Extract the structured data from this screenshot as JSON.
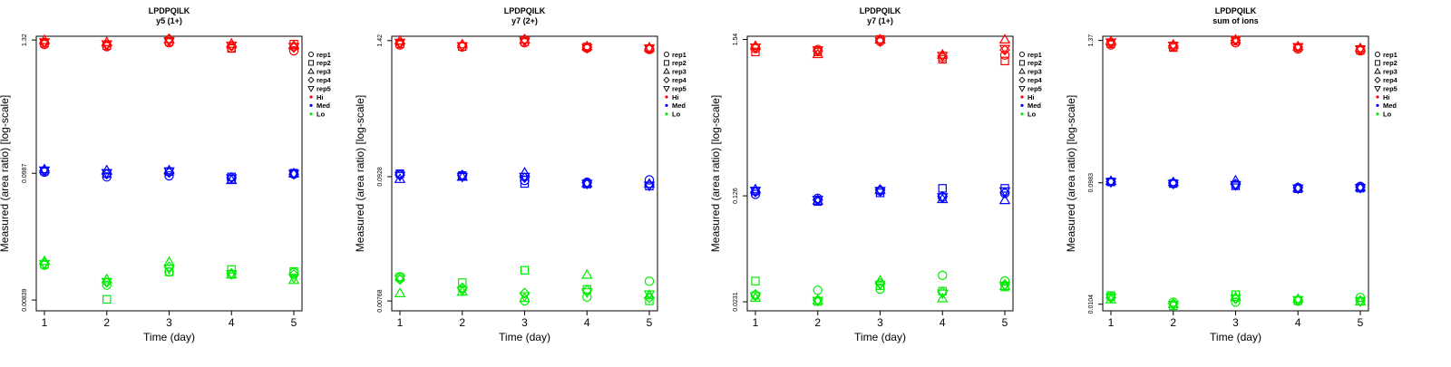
{
  "colors": {
    "Hi": "#ff0000",
    "Med": "#0000ff",
    "Lo": "#00ee00",
    "axis": "#000000"
  },
  "legend": {
    "shapes": [
      {
        "label": "rep1",
        "shape": "circle"
      },
      {
        "label": "rep2",
        "shape": "square"
      },
      {
        "label": "rep3",
        "shape": "triangle-up"
      },
      {
        "label": "rep4",
        "shape": "diamond"
      },
      {
        "label": "rep5",
        "shape": "triangle-down"
      }
    ],
    "groups": [
      {
        "label": "Hi",
        "color": "#ff0000"
      },
      {
        "label": "Med",
        "color": "#0000ff"
      },
      {
        "label": "Lo",
        "color": "#00ee00"
      }
    ]
  },
  "chart_data": [
    {
      "type": "scatter",
      "title": "LPDPQILK",
      "subtitle": "y5 (1+)",
      "xlabel": "Time (day)",
      "ylabel": "Measured (area ratio) [log-scale]",
      "yscale": "log",
      "x_ticks": [
        "1",
        "2",
        "3",
        "4",
        "5"
      ],
      "y_ticks": [
        {
          "label": "1.32",
          "value": 1.32
        },
        {
          "label": "0.0987",
          "value": 0.0987
        },
        {
          "label": "0.00839",
          "value": 0.00839
        }
      ],
      "ylim": [
        0.0068,
        1.42
      ],
      "series": [
        {
          "group": "Hi",
          "rep": "rep1",
          "values": [
            1.21,
            1.16,
            1.25,
            1.13,
            1.07
          ]
        },
        {
          "group": "Hi",
          "rep": "rep2",
          "values": [
            1.24,
            1.18,
            1.28,
            1.12,
            1.22
          ]
        },
        {
          "group": "Hi",
          "rep": "rep3",
          "values": [
            1.31,
            1.26,
            1.33,
            1.22,
            1.18
          ]
        },
        {
          "group": "Hi",
          "rep": "rep4",
          "values": [
            1.25,
            1.2,
            1.35,
            1.17,
            1.14
          ]
        },
        {
          "group": "Hi",
          "rep": "rep5",
          "values": [
            1.27,
            1.22,
            1.3,
            1.19,
            1.16
          ]
        },
        {
          "group": "Med",
          "rep": "rep1",
          "values": [
            0.101,
            0.092,
            0.094,
            0.088,
            0.097
          ]
        },
        {
          "group": "Med",
          "rep": "rep2",
          "values": [
            0.103,
            0.098,
            0.102,
            0.092,
            0.099
          ]
        },
        {
          "group": "Med",
          "rep": "rep3",
          "values": [
            0.106,
            0.104,
            0.104,
            0.086,
            0.098
          ]
        },
        {
          "group": "Med",
          "rep": "rep4",
          "values": [
            0.104,
            0.097,
            0.1,
            0.091,
            0.097
          ]
        },
        {
          "group": "Med",
          "rep": "rep5",
          "values": [
            0.105,
            0.1,
            0.103,
            0.09,
            0.098
          ]
        },
        {
          "group": "Lo",
          "rep": "rep1",
          "values": [
            0.0165,
            0.0112,
            0.0145,
            0.0138,
            0.0143
          ]
        },
        {
          "group": "Lo",
          "rep": "rep2",
          "values": [
            0.0168,
            0.0085,
            0.0145,
            0.0152,
            0.0146
          ]
        },
        {
          "group": "Lo",
          "rep": "rep3",
          "values": [
            0.0178,
            0.0125,
            0.0175,
            0.0137,
            0.0123
          ]
        },
        {
          "group": "Lo",
          "rep": "rep4",
          "values": [
            0.0172,
            0.0118,
            0.016,
            0.0141,
            0.0138
          ]
        },
        {
          "group": "Lo",
          "rep": "rep5",
          "values": [
            0.017,
            0.012,
            0.0155,
            0.014,
            0.013
          ]
        }
      ]
    },
    {
      "type": "scatter",
      "title": "LPDPQILK",
      "subtitle": "y7 (2+)",
      "xlabel": "Time (day)",
      "ylabel": "Measured (area ratio) [log-scale]",
      "yscale": "log",
      "x_ticks": [
        "1",
        "2",
        "3",
        "4",
        "5"
      ],
      "y_ticks": [
        {
          "label": "1.42",
          "value": 1.42
        },
        {
          "label": "0.0928",
          "value": 0.0928
        },
        {
          "label": "0.00768",
          "value": 0.00768
        }
      ],
      "ylim": [
        0.0063,
        1.55
      ],
      "series": [
        {
          "group": "Hi",
          "rep": "rep1",
          "values": [
            1.3,
            1.25,
            1.36,
            1.22,
            1.19
          ]
        },
        {
          "group": "Hi",
          "rep": "rep2",
          "values": [
            1.33,
            1.26,
            1.39,
            1.25,
            1.21
          ]
        },
        {
          "group": "Hi",
          "rep": "rep3",
          "values": [
            1.41,
            1.31,
            1.44,
            1.26,
            1.23
          ]
        },
        {
          "group": "Hi",
          "rep": "rep4",
          "values": [
            1.35,
            1.29,
            1.46,
            1.24,
            1.2
          ]
        },
        {
          "group": "Hi",
          "rep": "rep5",
          "values": [
            1.37,
            1.28,
            1.42,
            1.23,
            1.22
          ]
        },
        {
          "group": "Med",
          "rep": "rep1",
          "values": [
            0.0975,
            0.094,
            0.086,
            0.083,
            0.087
          ]
        },
        {
          "group": "Med",
          "rep": "rep2",
          "values": [
            0.0985,
            0.095,
            0.081,
            0.08,
            0.077
          ]
        },
        {
          "group": "Med",
          "rep": "rep3",
          "values": [
            0.088,
            0.092,
            0.1,
            0.081,
            0.08
          ]
        },
        {
          "group": "Med",
          "rep": "rep4",
          "values": [
            0.096,
            0.096,
            0.091,
            0.082,
            0.079
          ]
        },
        {
          "group": "Med",
          "rep": "rep5",
          "values": [
            0.095,
            0.093,
            0.093,
            0.081,
            0.078
          ]
        },
        {
          "group": "Lo",
          "rep": "rep1",
          "values": [
            0.0125,
            0.0098,
            0.0077,
            0.0083,
            0.0114
          ]
        },
        {
          "group": "Lo",
          "rep": "rep2",
          "values": [
            0.0123,
            0.0111,
            0.0142,
            0.0097,
            0.0077
          ]
        },
        {
          "group": "Lo",
          "rep": "rep3",
          "values": [
            0.0089,
            0.0092,
            0.0081,
            0.0129,
            0.0086
          ]
        },
        {
          "group": "Lo",
          "rep": "rep4",
          "values": [
            0.0118,
            0.01,
            0.009,
            0.0095,
            0.0082
          ]
        },
        {
          "group": "Lo",
          "rep": "rep5",
          "values": [
            0.012,
            0.0095,
            0.0085,
            0.0092,
            0.0088
          ]
        }
      ]
    },
    {
      "type": "scatter",
      "title": "LPDPQILK",
      "subtitle": "y7 (1+)",
      "xlabel": "Time (day)",
      "ylabel": "Measured (area ratio) [log-scale]",
      "yscale": "log",
      "x_ticks": [
        "1",
        "2",
        "3",
        "4",
        "5"
      ],
      "y_ticks": [
        {
          "label": "1.54",
          "value": 1.54
        },
        {
          "label": "0.126",
          "value": 0.126
        },
        {
          "label": "0.0231",
          "value": 0.0231
        }
      ],
      "ylim": [
        0.02,
        1.62
      ],
      "series": [
        {
          "group": "Hi",
          "rep": "rep1",
          "values": [
            1.33,
            1.31,
            1.49,
            1.15,
            1.2
          ]
        },
        {
          "group": "Hi",
          "rep": "rep2",
          "values": [
            1.26,
            1.26,
            1.54,
            1.12,
            1.09
          ]
        },
        {
          "group": "Hi",
          "rep": "rep3",
          "values": [
            1.38,
            1.21,
            1.53,
            1.2,
            1.53
          ]
        },
        {
          "group": "Hi",
          "rep": "rep4",
          "values": [
            1.35,
            1.28,
            1.52,
            1.18,
            1.3
          ]
        },
        {
          "group": "Hi",
          "rep": "rep5",
          "values": [
            1.36,
            1.3,
            1.5,
            1.19,
            1.33
          ]
        },
        {
          "group": "Med",
          "rep": "rep1",
          "values": [
            0.129,
            0.121,
            0.136,
            0.123,
            0.131
          ]
        },
        {
          "group": "Med",
          "rep": "rep2",
          "values": [
            0.136,
            0.115,
            0.132,
            0.142,
            0.142
          ]
        },
        {
          "group": "Med",
          "rep": "rep3",
          "values": [
            0.139,
            0.116,
            0.138,
            0.119,
            0.117
          ]
        },
        {
          "group": "Med",
          "rep": "rep4",
          "values": [
            0.134,
            0.118,
            0.139,
            0.125,
            0.133
          ]
        },
        {
          "group": "Med",
          "rep": "rep5",
          "values": [
            0.137,
            0.119,
            0.137,
            0.124,
            0.136
          ]
        },
        {
          "group": "Lo",
          "rep": "rep1",
          "values": [
            0.0257,
            0.0278,
            0.0283,
            0.0353,
            0.0323
          ]
        },
        {
          "group": "Lo",
          "rep": "rep2",
          "values": [
            0.0322,
            0.0232,
            0.0299,
            0.0274,
            0.0293
          ]
        },
        {
          "group": "Lo",
          "rep": "rep3",
          "values": [
            0.0245,
            0.0235,
            0.0323,
            0.0243,
            0.0296
          ]
        },
        {
          "group": "Lo",
          "rep": "rep4",
          "values": [
            0.026,
            0.0238,
            0.031,
            0.027,
            0.0305
          ]
        },
        {
          "group": "Lo",
          "rep": "rep5",
          "values": [
            0.0255,
            0.0236,
            0.0305,
            0.0265,
            0.03
          ]
        }
      ]
    },
    {
      "type": "scatter",
      "title": "LPDPQILK",
      "subtitle": "sum of ions",
      "xlabel": "Time (day)",
      "ylabel": "Measured (area ratio) [log-scale]",
      "yscale": "log",
      "x_ticks": [
        "1",
        "2",
        "3",
        "4",
        "5"
      ],
      "y_ticks": [
        {
          "label": "1.37",
          "value": 1.37
        },
        {
          "label": "0.0983",
          "value": 0.0983
        },
        {
          "label": "0.0104",
          "value": 0.0104
        }
      ],
      "ylim": [
        0.0092,
        1.48
      ],
      "series": [
        {
          "group": "Hi",
          "rep": "rep1",
          "values": [
            1.26,
            1.22,
            1.31,
            1.17,
            1.13
          ]
        },
        {
          "group": "Hi",
          "rep": "rep2",
          "values": [
            1.29,
            1.2,
            1.35,
            1.2,
            1.14
          ]
        },
        {
          "group": "Hi",
          "rep": "rep3",
          "values": [
            1.34,
            1.26,
            1.38,
            1.22,
            1.18
          ]
        },
        {
          "group": "Hi",
          "rep": "rep4",
          "values": [
            1.3,
            1.24,
            1.37,
            1.21,
            1.15
          ]
        },
        {
          "group": "Hi",
          "rep": "rep5",
          "values": [
            1.33,
            1.25,
            1.39,
            1.22,
            1.17
          ]
        },
        {
          "group": "Med",
          "rep": "rep1",
          "values": [
            0.1,
            0.097,
            0.095,
            0.09,
            0.092
          ]
        },
        {
          "group": "Med",
          "rep": "rep2",
          "values": [
            0.1,
            0.097,
            0.093,
            0.088,
            0.089
          ]
        },
        {
          "group": "Med",
          "rep": "rep3",
          "values": [
            0.101,
            0.099,
            0.102,
            0.089,
            0.09
          ]
        },
        {
          "group": "Med",
          "rep": "rep4",
          "values": [
            0.1,
            0.098,
            0.096,
            0.09,
            0.091
          ]
        },
        {
          "group": "Med",
          "rep": "rep5",
          "values": [
            0.1,
            0.097,
            0.095,
            0.089,
            0.09
          ]
        },
        {
          "group": "Lo",
          "rep": "rep1",
          "values": [
            0.012,
            0.0108,
            0.0108,
            0.011,
            0.0118
          ]
        },
        {
          "group": "Lo",
          "rep": "rep2",
          "values": [
            0.0122,
            0.0101,
            0.0124,
            0.0111,
            0.011
          ]
        },
        {
          "group": "Lo",
          "rep": "rep3",
          "values": [
            0.0113,
            0.0104,
            0.0118,
            0.0114,
            0.0109
          ]
        },
        {
          "group": "Lo",
          "rep": "rep4",
          "values": [
            0.0117,
            0.0105,
            0.0115,
            0.0112,
            0.0111
          ]
        },
        {
          "group": "Lo",
          "rep": "rep5",
          "values": [
            0.0118,
            0.0103,
            0.0116,
            0.0113,
            0.011
          ]
        }
      ]
    }
  ]
}
